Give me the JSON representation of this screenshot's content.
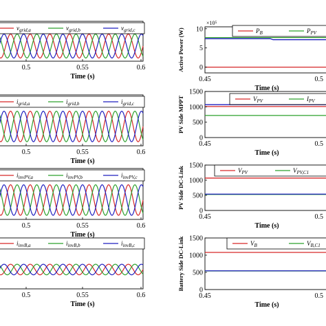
{
  "chart_data": [
    {
      "id": "grid-voltage",
      "type": "line",
      "title": "",
      "xlabel": "Time (s)",
      "ylabel": "",
      "xlim": [
        0.45,
        0.6
      ],
      "x_ticks": [
        "0.5",
        "0.55",
        "0.6"
      ],
      "y_ticks": [],
      "grid": false,
      "series": [
        {
          "name": "v_grid,a",
          "base": "v",
          "sub": "grid,a",
          "color": "#d62728",
          "amplitude": 0.72,
          "frequency_hz": 50,
          "phase_deg": 0
        },
        {
          "name": "v_grid,b",
          "base": "v",
          "sub": "grid,b",
          "color": "#2ca02c",
          "amplitude": 0.72,
          "frequency_hz": 50,
          "phase_deg": -120
        },
        {
          "name": "v_grid,c",
          "base": "v",
          "sub": "grid,c",
          "color": "#1f1fbf",
          "amplitude": 0.72,
          "frequency_hz": 50,
          "phase_deg": 120
        }
      ]
    },
    {
      "id": "grid-current",
      "type": "line",
      "title": "",
      "xlabel": "Time (s)",
      "ylabel": "",
      "xlim": [
        0.45,
        0.6
      ],
      "x_ticks": [
        "0.5",
        "0.55",
        "0.6"
      ],
      "y_ticks": [],
      "grid": false,
      "series": [
        {
          "name": "i_grid,a",
          "base": "i",
          "sub": "grid,a",
          "color": "#d62728",
          "amplitude": 0.72,
          "frequency_hz": 50,
          "phase_deg": 0
        },
        {
          "name": "i_grid,b",
          "base": "i",
          "sub": "grid,b",
          "color": "#2ca02c",
          "amplitude": 0.72,
          "frequency_hz": 50,
          "phase_deg": -120
        },
        {
          "name": "i_grid,c",
          "base": "i",
          "sub": "grid,c",
          "color": "#1f1fbf",
          "amplitude": 0.72,
          "frequency_hz": 50,
          "phase_deg": 120
        }
      ]
    },
    {
      "id": "pv-inverter-current",
      "type": "line",
      "title": "",
      "xlabel": "Time (s)",
      "ylabel": "",
      "xlim": [
        0.45,
        0.6
      ],
      "x_ticks": [
        "0.5",
        "0.55",
        "0.6"
      ],
      "y_ticks": [],
      "grid": false,
      "series": [
        {
          "name": "i_invPV,a",
          "base": "i",
          "sub": "invPV,a",
          "color": "#d62728",
          "amplitude": 0.72,
          "frequency_hz": 50,
          "phase_deg": 0
        },
        {
          "name": "i_invPV,b",
          "base": "i",
          "sub": "invPV,b",
          "color": "#2ca02c",
          "amplitude": 0.72,
          "frequency_hz": 50,
          "phase_deg": -120
        },
        {
          "name": "i_invPV,c",
          "base": "i",
          "sub": "invPV,c",
          "color": "#1f1fbf",
          "amplitude": 0.72,
          "frequency_hz": 50,
          "phase_deg": 120
        }
      ]
    },
    {
      "id": "battery-inverter-current",
      "type": "line",
      "title": "",
      "xlabel": "Time (s)",
      "ylabel": "",
      "xlim": [
        0.45,
        0.6
      ],
      "x_ticks": [
        "0.5",
        "0.55",
        "0.6"
      ],
      "y_ticks": [],
      "grid": false,
      "series": [
        {
          "name": "i_invB,a",
          "base": "i",
          "sub": "invB,a",
          "color": "#d62728",
          "amplitude": 0.25,
          "frequency_hz": 50,
          "phase_deg": 0
        },
        {
          "name": "i_invB,b",
          "base": "i",
          "sub": "invB,b",
          "color": "#2ca02c",
          "amplitude": 0.25,
          "frequency_hz": 50,
          "phase_deg": -120
        },
        {
          "name": "i_invB,c",
          "base": "i",
          "sub": "invB,c",
          "color": "#1f1fbf",
          "amplitude": 0.25,
          "frequency_hz": 50,
          "phase_deg": 120
        }
      ]
    },
    {
      "id": "active-power",
      "type": "line",
      "title": "",
      "xlabel": "Time (s)",
      "ylabel": "Active Power (W)",
      "xlim": [
        0.45,
        0.6
      ],
      "ylim": [
        -1.5,
        10.5
      ],
      "x_ticks": [
        "0.45",
        "0.5"
      ],
      "y_ticks": [
        "0",
        "5",
        "10"
      ],
      "exponent_label": "×10⁵",
      "grid": false,
      "series": [
        {
          "name": "P_B",
          "base": "P",
          "sub": "B",
          "color": "#d62728",
          "y": 0.0
        },
        {
          "name": "P_PV",
          "base": "P",
          "sub": "PV",
          "color": "#2ca02c",
          "y": 7.7
        },
        {
          "name": "",
          "base": "",
          "sub": "",
          "color": "#1f1fbf",
          "y": 7.4,
          "dip": -0.25
        }
      ]
    },
    {
      "id": "pv-side-mppt",
      "type": "line",
      "title": "",
      "xlabel": "Time (s)",
      "ylabel": "PV Side MPPT",
      "xlim": [
        0.45,
        0.6
      ],
      "ylim": [
        0,
        1500
      ],
      "x_ticks": [
        "0.45",
        "0.5"
      ],
      "y_ticks": [
        "0",
        "500",
        "1000",
        "1500"
      ],
      "grid": false,
      "series": [
        {
          "name": "V_PV",
          "base": "V",
          "sub": "PV",
          "color": "#d62728",
          "y": 1010
        },
        {
          "name": "I_PV",
          "base": "I",
          "sub": "PV",
          "color": "#2ca02c",
          "y": 720
        },
        {
          "name": "",
          "base": "",
          "sub": "",
          "color": "#1f1fbf",
          "y": 1070
        }
      ]
    },
    {
      "id": "pv-side-dc-link",
      "type": "line",
      "title": "",
      "xlabel": "Time (s)",
      "ylabel": "PV Side DC-Link",
      "xlim": [
        0.45,
        0.6
      ],
      "ylim": [
        0,
        1500
      ],
      "x_ticks": [
        "0.45",
        "0.5"
      ],
      "y_ticks": [
        "0",
        "500",
        "1000",
        "1500"
      ],
      "grid": false,
      "series": [
        {
          "name": "V_PV",
          "base": "V",
          "sub": "PV",
          "color": "#d62728",
          "y": 1070
        },
        {
          "name": "V_PV,C1",
          "base": "V",
          "sub": "PV,C1",
          "color": "#2ca02c",
          "y": 530
        },
        {
          "name": "",
          "base": "",
          "sub": "",
          "color": "#1f1fbf",
          "y": 540
        }
      ]
    },
    {
      "id": "battery-side-dc-link",
      "type": "line",
      "title": "",
      "xlabel": "Time (s)",
      "ylabel": "Battery Side DC-Link",
      "xlim": [
        0.45,
        0.6
      ],
      "ylim": [
        0,
        1500
      ],
      "x_ticks": [
        "0.45",
        "0.5"
      ],
      "y_ticks": [
        "0",
        "500",
        "1000",
        "1500"
      ],
      "grid": false,
      "series": [
        {
          "name": "V_B",
          "base": "V",
          "sub": "B",
          "color": "#d62728",
          "y": 1080
        },
        {
          "name": "V_B,C1",
          "base": "V",
          "sub": "B,C1",
          "color": "#2ca02c",
          "y": 540
        },
        {
          "name": "",
          "base": "",
          "sub": "",
          "color": "#1f1fbf",
          "y": 545
        }
      ]
    }
  ]
}
